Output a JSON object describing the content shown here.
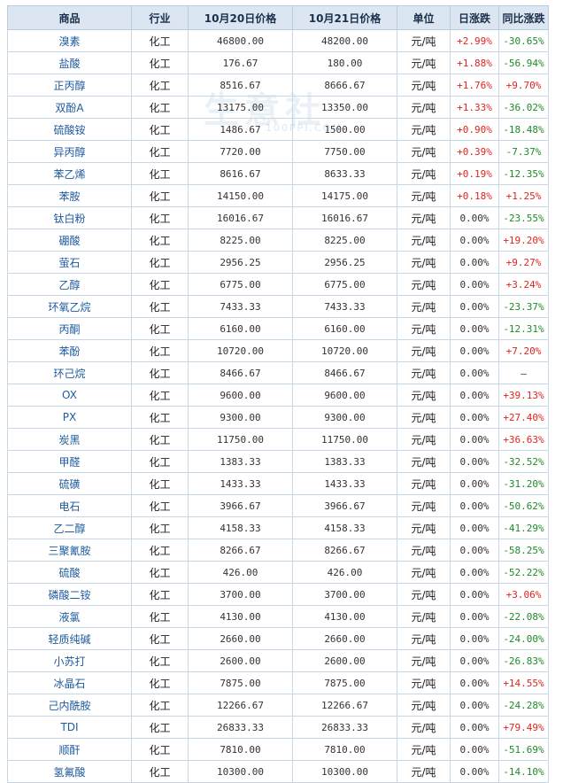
{
  "watermark": {
    "text": "生意社",
    "url": "100PPI.COM"
  },
  "headers": {
    "name": "商品",
    "industry": "行业",
    "price_a": "10月20日价格",
    "price_b": "10月21日价格",
    "unit": "单位",
    "daily": "日涨跌",
    "yoy": "同比涨跌"
  },
  "colors": {
    "up": "#e0241f",
    "down": "#1f8a2a",
    "header_bg": "#dbe6f2",
    "link": "#1d5a9e"
  },
  "rows": [
    {
      "name": "溴素",
      "industry": "化工",
      "price_a": "46800.00",
      "price_b": "48200.00",
      "unit": "元/吨",
      "daily": "+2.99%",
      "yoy": "-30.65%"
    },
    {
      "name": "盐酸",
      "industry": "化工",
      "price_a": "176.67",
      "price_b": "180.00",
      "unit": "元/吨",
      "daily": "+1.88%",
      "yoy": "-56.94%"
    },
    {
      "name": "正丙醇",
      "industry": "化工",
      "price_a": "8516.67",
      "price_b": "8666.67",
      "unit": "元/吨",
      "daily": "+1.76%",
      "yoy": "+9.70%"
    },
    {
      "name": "双酚A",
      "industry": "化工",
      "price_a": "13175.00",
      "price_b": "13350.00",
      "unit": "元/吨",
      "daily": "+1.33%",
      "yoy": "-36.02%"
    },
    {
      "name": "硫酸铵",
      "industry": "化工",
      "price_a": "1486.67",
      "price_b": "1500.00",
      "unit": "元/吨",
      "daily": "+0.90%",
      "yoy": "-18.48%"
    },
    {
      "name": "异丙醇",
      "industry": "化工",
      "price_a": "7720.00",
      "price_b": "7750.00",
      "unit": "元/吨",
      "daily": "+0.39%",
      "yoy": "-7.37%"
    },
    {
      "name": "苯乙烯",
      "industry": "化工",
      "price_a": "8616.67",
      "price_b": "8633.33",
      "unit": "元/吨",
      "daily": "+0.19%",
      "yoy": "-12.35%"
    },
    {
      "name": "苯胺",
      "industry": "化工",
      "price_a": "14150.00",
      "price_b": "14175.00",
      "unit": "元/吨",
      "daily": "+0.18%",
      "yoy": "+1.25%"
    },
    {
      "name": "钛白粉",
      "industry": "化工",
      "price_a": "16016.67",
      "price_b": "16016.67",
      "unit": "元/吨",
      "daily": "0.00%",
      "yoy": "-23.55%"
    },
    {
      "name": "硼酸",
      "industry": "化工",
      "price_a": "8225.00",
      "price_b": "8225.00",
      "unit": "元/吨",
      "daily": "0.00%",
      "yoy": "+19.20%"
    },
    {
      "name": "萤石",
      "industry": "化工",
      "price_a": "2956.25",
      "price_b": "2956.25",
      "unit": "元/吨",
      "daily": "0.00%",
      "yoy": "+9.27%"
    },
    {
      "name": "乙醇",
      "industry": "化工",
      "price_a": "6775.00",
      "price_b": "6775.00",
      "unit": "元/吨",
      "daily": "0.00%",
      "yoy": "+3.24%"
    },
    {
      "name": "环氧乙烷",
      "industry": "化工",
      "price_a": "7433.33",
      "price_b": "7433.33",
      "unit": "元/吨",
      "daily": "0.00%",
      "yoy": "-23.37%"
    },
    {
      "name": "丙酮",
      "industry": "化工",
      "price_a": "6160.00",
      "price_b": "6160.00",
      "unit": "元/吨",
      "daily": "0.00%",
      "yoy": "-12.31%"
    },
    {
      "name": "苯酚",
      "industry": "化工",
      "price_a": "10720.00",
      "price_b": "10720.00",
      "unit": "元/吨",
      "daily": "0.00%",
      "yoy": "+7.20%"
    },
    {
      "name": "环己烷",
      "industry": "化工",
      "price_a": "8466.67",
      "price_b": "8466.67",
      "unit": "元/吨",
      "daily": "0.00%",
      "yoy": "—"
    },
    {
      "name": "OX",
      "industry": "化工",
      "price_a": "9600.00",
      "price_b": "9600.00",
      "unit": "元/吨",
      "daily": "0.00%",
      "yoy": "+39.13%"
    },
    {
      "name": "PX",
      "industry": "化工",
      "price_a": "9300.00",
      "price_b": "9300.00",
      "unit": "元/吨",
      "daily": "0.00%",
      "yoy": "+27.40%"
    },
    {
      "name": "炭黑",
      "industry": "化工",
      "price_a": "11750.00",
      "price_b": "11750.00",
      "unit": "元/吨",
      "daily": "0.00%",
      "yoy": "+36.63%"
    },
    {
      "name": "甲醛",
      "industry": "化工",
      "price_a": "1383.33",
      "price_b": "1383.33",
      "unit": "元/吨",
      "daily": "0.00%",
      "yoy": "-32.52%"
    },
    {
      "name": "硫磺",
      "industry": "化工",
      "price_a": "1433.33",
      "price_b": "1433.33",
      "unit": "元/吨",
      "daily": "0.00%",
      "yoy": "-31.20%"
    },
    {
      "name": "电石",
      "industry": "化工",
      "price_a": "3966.67",
      "price_b": "3966.67",
      "unit": "元/吨",
      "daily": "0.00%",
      "yoy": "-50.62%"
    },
    {
      "name": "乙二醇",
      "industry": "化工",
      "price_a": "4158.33",
      "price_b": "4158.33",
      "unit": "元/吨",
      "daily": "0.00%",
      "yoy": "-41.29%"
    },
    {
      "name": "三聚氰胺",
      "industry": "化工",
      "price_a": "8266.67",
      "price_b": "8266.67",
      "unit": "元/吨",
      "daily": "0.00%",
      "yoy": "-58.25%"
    },
    {
      "name": "硫酸",
      "industry": "化工",
      "price_a": "426.00",
      "price_b": "426.00",
      "unit": "元/吨",
      "daily": "0.00%",
      "yoy": "-52.22%"
    },
    {
      "name": "磷酸二铵",
      "industry": "化工",
      "price_a": "3700.00",
      "price_b": "3700.00",
      "unit": "元/吨",
      "daily": "0.00%",
      "yoy": "+3.06%"
    },
    {
      "name": "液氯",
      "industry": "化工",
      "price_a": "4130.00",
      "price_b": "4130.00",
      "unit": "元/吨",
      "daily": "0.00%",
      "yoy": "-22.08%"
    },
    {
      "name": "轻质纯碱",
      "industry": "化工",
      "price_a": "2660.00",
      "price_b": "2660.00",
      "unit": "元/吨",
      "daily": "0.00%",
      "yoy": "-24.00%"
    },
    {
      "name": "小苏打",
      "industry": "化工",
      "price_a": "2600.00",
      "price_b": "2600.00",
      "unit": "元/吨",
      "daily": "0.00%",
      "yoy": "-26.83%"
    },
    {
      "name": "冰晶石",
      "industry": "化工",
      "price_a": "7875.00",
      "price_b": "7875.00",
      "unit": "元/吨",
      "daily": "0.00%",
      "yoy": "+14.55%"
    },
    {
      "name": "己内酰胺",
      "industry": "化工",
      "price_a": "12266.67",
      "price_b": "12266.67",
      "unit": "元/吨",
      "daily": "0.00%",
      "yoy": "-24.28%"
    },
    {
      "name": "TDI",
      "industry": "化工",
      "price_a": "26833.33",
      "price_b": "26833.33",
      "unit": "元/吨",
      "daily": "0.00%",
      "yoy": "+79.49%"
    },
    {
      "name": "顺酐",
      "industry": "化工",
      "price_a": "7810.00",
      "price_b": "7810.00",
      "unit": "元/吨",
      "daily": "0.00%",
      "yoy": "-51.69%"
    },
    {
      "name": "氢氟酸",
      "industry": "化工",
      "price_a": "10300.00",
      "price_b": "10300.00",
      "unit": "元/吨",
      "daily": "0.00%",
      "yoy": "-14.10%"
    }
  ]
}
